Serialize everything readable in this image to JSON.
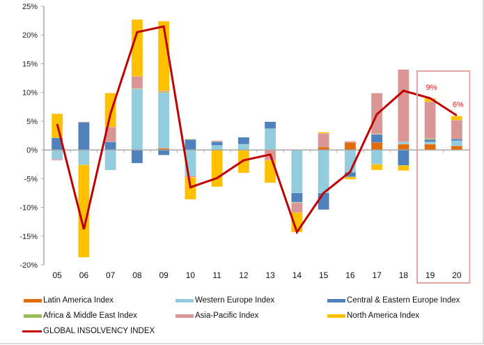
{
  "chart_data": {
    "type": "bar",
    "subtype": "stacked-bar-with-line",
    "title": "",
    "xlabel": "",
    "ylabel": "",
    "ylim": [
      -20,
      25
    ],
    "yticks": [
      25,
      20,
      15,
      10,
      5,
      0,
      -5,
      -10,
      -15,
      -20
    ],
    "ytick_labels": [
      "25%",
      "20%",
      "15%",
      "10%",
      "5%",
      "0%",
      "-5%",
      "-10%",
      "-15%",
      "-20%"
    ],
    "grid": false,
    "categories": [
      "05",
      "06",
      "07",
      "08",
      "09",
      "10",
      "11",
      "12",
      "13",
      "14",
      "15",
      "16",
      "17",
      "18",
      "19",
      "20"
    ],
    "series": [
      {
        "name": "Latin America Index",
        "color": "#e36c0a",
        "kind": "bar",
        "values": [
          0,
          0,
          0,
          0,
          0.3,
          0,
          0,
          0,
          0.1,
          0,
          0.5,
          1.3,
          1.3,
          1.0,
          1.0,
          0.7
        ]
      },
      {
        "name": "Western Europe Index",
        "color": "#93cddd",
        "kind": "bar",
        "values": [
          -1.6,
          -2.6,
          -3.5,
          10.6,
          9.6,
          -4.5,
          0.8,
          1.0,
          3.6,
          -7.5,
          -7.5,
          -3.9,
          -2.5,
          0.4,
          0.4,
          0.9
        ]
      },
      {
        "name": "Central & Eastern Europe Index",
        "color": "#4f81bd",
        "kind": "bar",
        "values": [
          2.1,
          4.8,
          1.4,
          -2.3,
          -0.9,
          1.8,
          0.6,
          1.2,
          1.2,
          -1.6,
          -2.9,
          -0.8,
          1.4,
          -2.7,
          0.4,
          0.3
        ]
      },
      {
        "name": "Africa & Middle East Index",
        "color": "#9bbb59",
        "kind": "bar",
        "values": [
          0,
          0,
          0,
          0.1,
          0.2,
          0.1,
          0,
          0,
          0,
          -0.1,
          0,
          0,
          0.1,
          0,
          0.2,
          0
        ]
      },
      {
        "name": "Asia-Pacific Index",
        "color": "#da9694",
        "kind": "bar",
        "values": [
          -0.2,
          0.1,
          2.6,
          2.1,
          0.2,
          -0.3,
          0.2,
          0,
          -1.8,
          -1.7,
          2.4,
          0.2,
          7.1,
          12.6,
          6.4,
          3.3
        ]
      },
      {
        "name": "North America Index",
        "color": "#ffc000",
        "kind": "bar",
        "values": [
          4.2,
          -16.1,
          5.9,
          9.9,
          12.1,
          -3.8,
          -6.4,
          -4.0,
          -3.9,
          -3.4,
          0.2,
          -0.4,
          -1.0,
          -0.9,
          0.6,
          0.7
        ]
      },
      {
        "name": "GLOBAL INSOLVENCY INDEX",
        "color": "#c00000",
        "kind": "line",
        "values": [
          4.5,
          -13.8,
          6.3,
          20.5,
          21.5,
          -6.5,
          -4.9,
          -1.8,
          -0.8,
          -14.3,
          -7.5,
          -3.8,
          6.2,
          10.3,
          9.0,
          6.0
        ]
      }
    ],
    "annotations": [
      {
        "category": "19",
        "text": "9%",
        "value": 9.0
      },
      {
        "category": "20",
        "text": "6%",
        "value": 6.0
      }
    ],
    "highlight": {
      "categories": [
        "19",
        "20"
      ],
      "color": "#e6a5a5",
      "meaning": "forecast"
    },
    "legend": {
      "placement": "bottom"
    }
  },
  "colors": {
    "axis": "#a6a6a6",
    "highlight_box": "#e6a5a5",
    "annotation_text": "#e8171b"
  }
}
